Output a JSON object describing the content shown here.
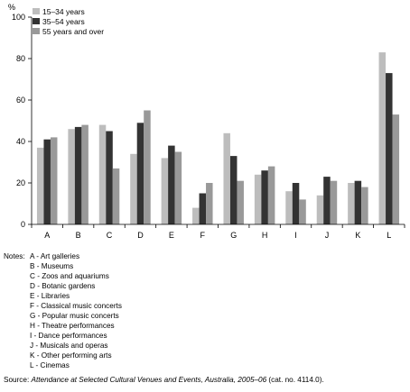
{
  "chart_data": {
    "type": "bar",
    "ylabel": "%",
    "ylim": [
      0,
      100
    ],
    "yticks": [
      0,
      20,
      40,
      60,
      80,
      100
    ],
    "categories": [
      "A",
      "B",
      "C",
      "D",
      "E",
      "F",
      "G",
      "H",
      "I",
      "J",
      "K",
      "L"
    ],
    "series": [
      {
        "name": "15–34 years",
        "color": "#bdbdbd",
        "values": [
          37,
          46,
          48,
          34,
          32,
          8,
          44,
          24,
          16,
          14,
          20,
          83
        ]
      },
      {
        "name": "35–54 years",
        "color": "#333333",
        "values": [
          41,
          47,
          45,
          49,
          38,
          15,
          33,
          26,
          20,
          23,
          21,
          73
        ]
      },
      {
        "name": "55 years and over",
        "color": "#999999",
        "values": [
          42,
          48,
          27,
          55,
          35,
          20,
          21,
          28,
          12,
          21,
          18,
          53
        ]
      }
    ],
    "legend_position": "top-left",
    "grid": false
  },
  "notes": {
    "prefix": "Notes:",
    "items": [
      {
        "key": "A",
        "text": "Art galleries"
      },
      {
        "key": "B",
        "text": "Museums"
      },
      {
        "key": "C",
        "text": "Zoos and aquariums"
      },
      {
        "key": "D",
        "text": "Botanic gardens"
      },
      {
        "key": "E",
        "text": "Libraries"
      },
      {
        "key": "F",
        "text": "Classical music concerts"
      },
      {
        "key": "G",
        "text": "Popular music concerts"
      },
      {
        "key": "H",
        "text": "Theatre performances"
      },
      {
        "key": "I",
        "text": "Dance performances"
      },
      {
        "key": "J",
        "text": "Musicals and operas"
      },
      {
        "key": "K",
        "text": "Other performing arts"
      },
      {
        "key": "L",
        "text": "Cinemas"
      }
    ]
  },
  "source": {
    "prefix": "Source: ",
    "title": "Attendance at Selected Cultural Venues and Events, Australia, 2005–06",
    "suffix": " (cat. no. 4114.0)."
  }
}
